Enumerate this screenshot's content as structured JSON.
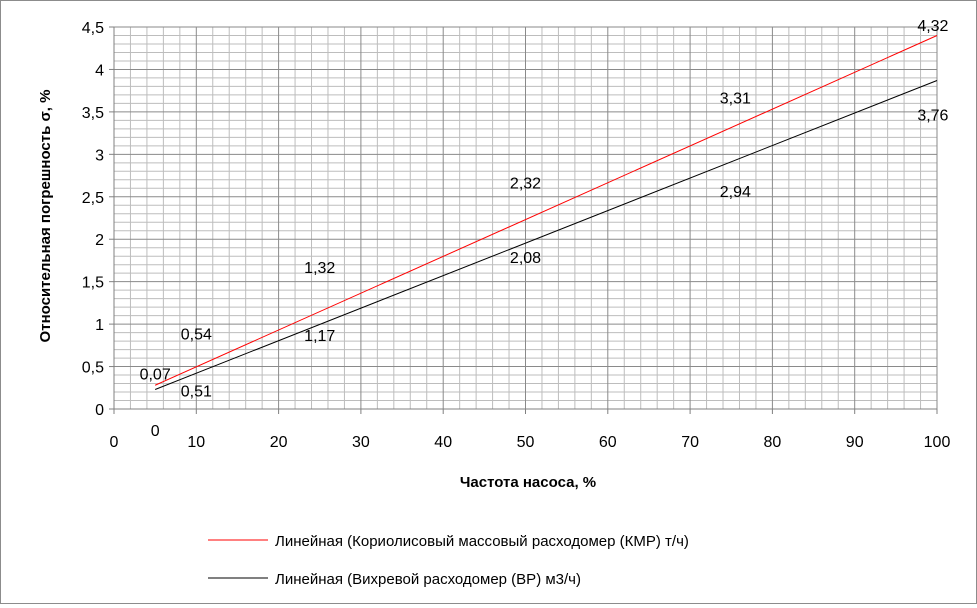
{
  "chart_data": {
    "type": "line",
    "xlabel": "Частота насоса, %",
    "ylabel": "Относительная погрешность σ,  %",
    "xlim": [
      0,
      100
    ],
    "ylim": [
      0,
      4.5
    ],
    "x_ticks": [
      "0",
      "10",
      "20",
      "30",
      "40",
      "50",
      "60",
      "70",
      "80",
      "90",
      "100"
    ],
    "y_ticks": [
      "0",
      "0,5",
      "1",
      "1,5",
      "2",
      "2,5",
      "3",
      "3,5",
      "4",
      "4,5"
    ],
    "grid": true,
    "legend_position": "bottom",
    "series": [
      {
        "name": "Линейная (Кориолисовый массовый расходомер (КМР) т/ч)",
        "color": "#ff0000",
        "x": [
          5,
          100
        ],
        "y": [
          0.28,
          4.4
        ]
      },
      {
        "name": "Линейная (Вихревой расходомер (ВР) м3/ч)",
        "color": "#000000",
        "x": [
          5,
          100
        ],
        "y": [
          0.23,
          3.87
        ]
      }
    ],
    "annotations": [
      {
        "text": "4,32",
        "x": 99.5,
        "y": 4.45
      },
      {
        "text": "3,31",
        "x": 75.5,
        "y": 3.6
      },
      {
        "text": "3,76",
        "x": 99.5,
        "y": 3.4
      },
      {
        "text": "2,32",
        "x": 50.0,
        "y": 2.6
      },
      {
        "text": "2,94",
        "x": 75.5,
        "y": 2.5
      },
      {
        "text": "2,08",
        "x": 50.0,
        "y": 1.72
      },
      {
        "text": "1,32",
        "x": 25.0,
        "y": 1.6
      },
      {
        "text": "1,17",
        "x": 25.0,
        "y": 0.8
      },
      {
        "text": "0,54",
        "x": 10.0,
        "y": 0.82
      },
      {
        "text": "0,07",
        "x": 5.0,
        "y": 0.35
      },
      {
        "text": "0,51",
        "x": 10.0,
        "y": 0.15
      },
      {
        "text": "0",
        "x": 5.0,
        "y": -0.32
      }
    ]
  }
}
